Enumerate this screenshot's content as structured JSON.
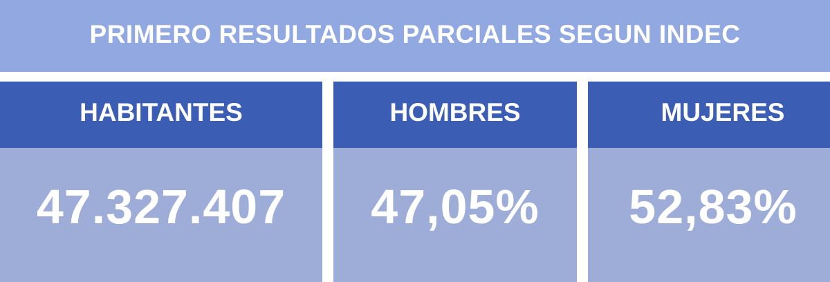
{
  "title": "PRIMERO RESULTADOS PARCIALES SEGUN INDEC",
  "colors": {
    "banner": "#91a8e0",
    "header": "#3b5eb4",
    "body": "#9dadd8",
    "text": "#ffffff"
  },
  "cards": [
    {
      "label": "HABITANTES",
      "value": "47.327.407"
    },
    {
      "label": "HOMBRES",
      "value": "47,05%"
    },
    {
      "label": "MUJERES",
      "value": "52,83%"
    }
  ]
}
